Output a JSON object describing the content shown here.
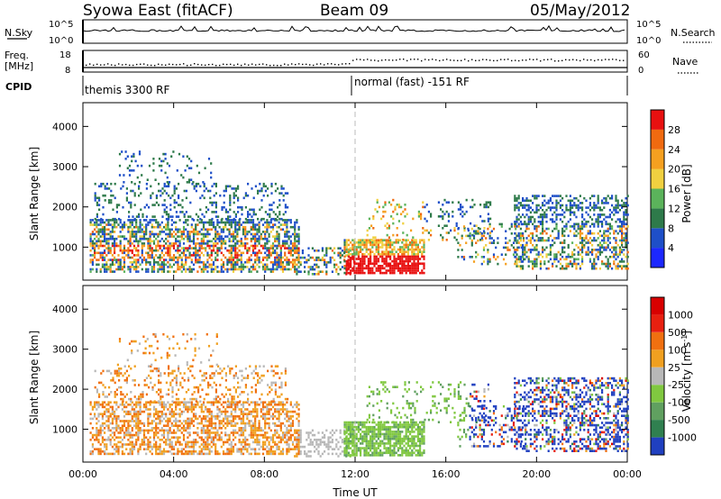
{
  "header": {
    "station": "Syowa East (fitACF)",
    "beam": "Beam 09",
    "date": "05/May/2012"
  },
  "strip_labels": {
    "nsky": "N.Sky",
    "nsky_lo": "10^0",
    "nsky_hi": "10^5",
    "nsearch": "N.Search",
    "nsearch_lo": "10^0",
    "nsearch_hi": "10^5",
    "freq": "Freq.",
    "freq_unit": "[MHz]",
    "freq_lo": "8",
    "freq_hi": "18",
    "nave": "Nave",
    "nave_lo": "0",
    "nave_hi": "60",
    "cpid": "CPID",
    "cpid_mode1": "themis 3300 RF",
    "cpid_mode2": "normal (fast) -151 RF"
  },
  "chart_data": [
    {
      "type": "heatmap",
      "title": "",
      "ylabel": "Slant Range [km]",
      "xlabel": "Time UT",
      "ylim": [
        180,
        4590
      ],
      "y_ticks": [
        "1000",
        "2000",
        "3000",
        "4000"
      ],
      "x_ticks": [
        "00:00",
        "04:00",
        "08:00",
        "12:00",
        "16:00",
        "20:00",
        "00:00"
      ],
      "colorbar": {
        "label": "Power [dB]",
        "ticks": [
          "4",
          "8",
          "12",
          "16",
          "20",
          "24",
          "28"
        ],
        "colors": [
          "#1c28ff",
          "#1e4fc8",
          "#2e7a4a",
          "#5bb35b",
          "#f0d040",
          "#f5a020",
          "#f06a10",
          "#e81010"
        ]
      }
    },
    {
      "type": "heatmap",
      "title": "",
      "ylabel": "Slant Range [km]",
      "xlabel": "Time UT",
      "ylim": [
        180,
        4590
      ],
      "y_ticks": [
        "1000",
        "2000",
        "3000",
        "4000"
      ],
      "x_ticks": [
        "00:00",
        "04:00",
        "08:00",
        "12:00",
        "16:00",
        "20:00",
        "00:00"
      ],
      "colorbar": {
        "label": "Velocity [m s^-1]",
        "ticks": [
          "1000",
          "500",
          "100",
          "25",
          "-25",
          "-100",
          "-500",
          "-1000"
        ],
        "colors": [
          "#2040c0",
          "#308050",
          "#60a060",
          "#80c840",
          "#b8b8b8",
          "#f0a020",
          "#f07010",
          "#e82010",
          "#d80000"
        ]
      }
    }
  ]
}
